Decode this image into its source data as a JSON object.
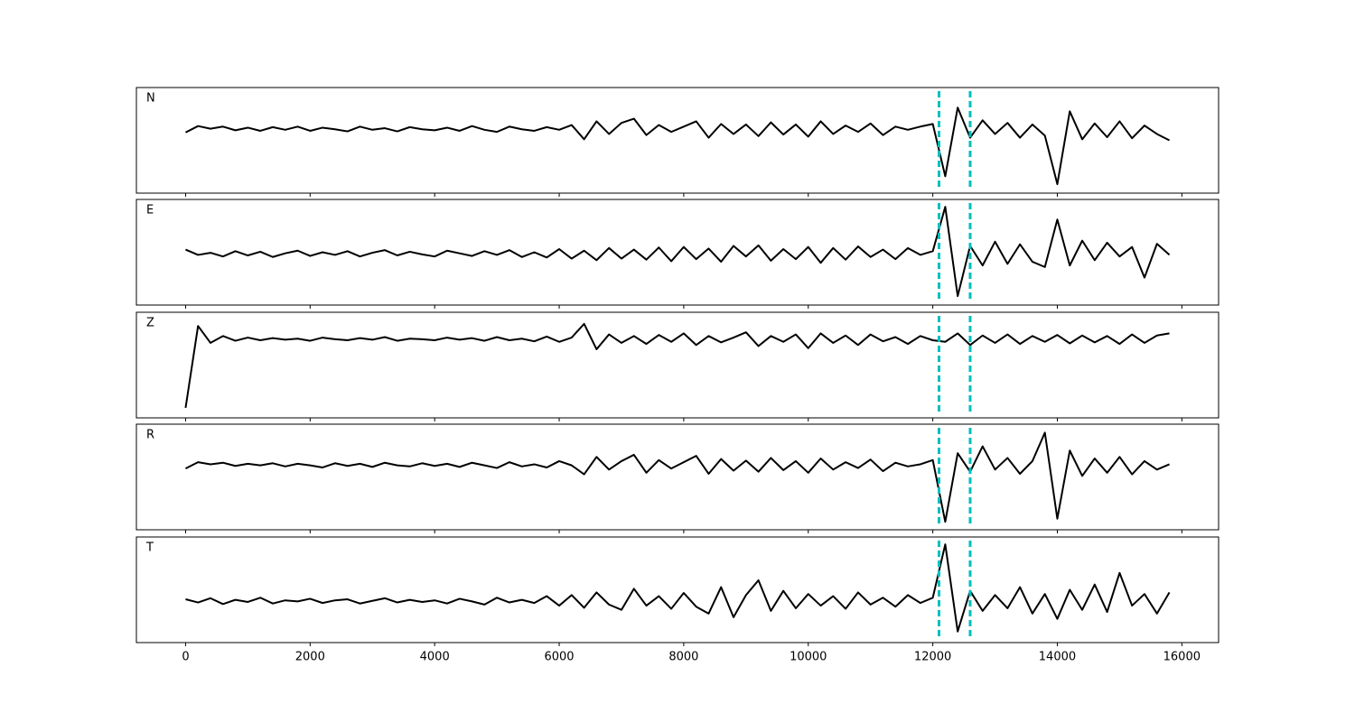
{
  "chart_data": {
    "type": "line",
    "x": [
      0,
      200,
      400,
      600,
      800,
      1000,
      1200,
      1400,
      1600,
      1800,
      2000,
      2200,
      2400,
      2600,
      2800,
      3000,
      3200,
      3400,
      3600,
      3800,
      4000,
      4200,
      4400,
      4600,
      4800,
      5000,
      5200,
      5400,
      5600,
      5800,
      6000,
      6200,
      6400,
      6600,
      6800,
      7000,
      7200,
      7400,
      7600,
      7800,
      8000,
      8200,
      8400,
      8600,
      8800,
      9000,
      9200,
      9400,
      9600,
      9800,
      10000,
      10200,
      10400,
      10600,
      10800,
      11000,
      11200,
      11400,
      11600,
      11800,
      12000,
      12200,
      12400,
      12600,
      12800,
      13000,
      13200,
      13400,
      13600,
      13800,
      14000,
      14200,
      14400,
      14600,
      14800,
      15000,
      15200,
      15400,
      15600,
      15800
    ],
    "xlim": [
      -790,
      16590
    ],
    "xticks": [
      0,
      2000,
      4000,
      6000,
      8000,
      10000,
      12000,
      14000,
      16000
    ],
    "ylim": [
      -1,
      1
    ],
    "line_color": "#000000",
    "vlines": [
      12100,
      12600
    ],
    "vline_color": "#00bfbf",
    "series": [
      {
        "name": "N",
        "values": [
          0.15,
          0.27,
          0.22,
          0.26,
          0.19,
          0.24,
          0.18,
          0.25,
          0.2,
          0.26,
          0.18,
          0.24,
          0.21,
          0.17,
          0.26,
          0.2,
          0.23,
          0.17,
          0.25,
          0.21,
          0.19,
          0.24,
          0.18,
          0.27,
          0.2,
          0.16,
          0.26,
          0.21,
          0.18,
          0.25,
          0.2,
          0.29,
          0.02,
          0.36,
          0.12,
          0.33,
          0.41,
          0.1,
          0.29,
          0.16,
          0.26,
          0.36,
          0.05,
          0.31,
          0.12,
          0.3,
          0.08,
          0.34,
          0.11,
          0.3,
          0.07,
          0.36,
          0.12,
          0.28,
          0.16,
          0.32,
          0.1,
          0.26,
          0.2,
          0.26,
          0.31,
          -0.68,
          0.62,
          0.05,
          0.38,
          0.12,
          0.33,
          0.05,
          0.3,
          0.09,
          -0.83,
          0.55,
          0.02,
          0.32,
          0.06,
          0.36,
          0.04,
          0.28,
          0.12,
          0.0
        ]
      },
      {
        "name": "E",
        "values": [
          0.05,
          -0.05,
          -0.01,
          -0.08,
          0.02,
          -0.06,
          0.01,
          -0.09,
          -0.02,
          0.03,
          -0.07,
          0.0,
          -0.05,
          0.02,
          -0.08,
          -0.01,
          0.04,
          -0.06,
          0.01,
          -0.04,
          -0.08,
          0.03,
          -0.02,
          -0.07,
          0.02,
          -0.05,
          0.04,
          -0.09,
          0.0,
          -0.1,
          0.06,
          -0.12,
          0.03,
          -0.15,
          0.08,
          -0.12,
          0.05,
          -0.14,
          0.09,
          -0.17,
          0.1,
          -0.13,
          0.07,
          -0.18,
          0.12,
          -0.08,
          0.13,
          -0.16,
          0.06,
          -0.13,
          0.1,
          -0.2,
          0.08,
          -0.14,
          0.11,
          -0.09,
          0.05,
          -0.13,
          0.08,
          -0.05,
          0.02,
          0.86,
          -0.83,
          0.12,
          -0.25,
          0.2,
          -0.22,
          0.15,
          -0.18,
          -0.28,
          0.62,
          -0.25,
          0.22,
          -0.15,
          0.18,
          -0.08,
          0.1,
          -0.48,
          0.16,
          -0.05
        ]
      },
      {
        "name": "Z",
        "values": [
          -0.81,
          0.74,
          0.42,
          0.55,
          0.46,
          0.52,
          0.47,
          0.51,
          0.48,
          0.5,
          0.46,
          0.52,
          0.49,
          0.47,
          0.51,
          0.48,
          0.53,
          0.46,
          0.5,
          0.49,
          0.47,
          0.52,
          0.48,
          0.51,
          0.46,
          0.53,
          0.47,
          0.5,
          0.45,
          0.54,
          0.44,
          0.52,
          0.78,
          0.3,
          0.58,
          0.42,
          0.55,
          0.4,
          0.57,
          0.44,
          0.6,
          0.38,
          0.55,
          0.43,
          0.52,
          0.62,
          0.36,
          0.55,
          0.44,
          0.58,
          0.32,
          0.6,
          0.42,
          0.56,
          0.38,
          0.58,
          0.45,
          0.53,
          0.4,
          0.55,
          0.47,
          0.44,
          0.6,
          0.38,
          0.56,
          0.42,
          0.58,
          0.4,
          0.55,
          0.44,
          0.57,
          0.41,
          0.56,
          0.43,
          0.55,
          0.4,
          0.58,
          0.42,
          0.56,
          0.6
        ]
      },
      {
        "name": "R",
        "values": [
          0.16,
          0.28,
          0.24,
          0.27,
          0.21,
          0.25,
          0.22,
          0.26,
          0.2,
          0.25,
          0.22,
          0.18,
          0.26,
          0.21,
          0.25,
          0.19,
          0.27,
          0.22,
          0.2,
          0.26,
          0.21,
          0.25,
          0.19,
          0.27,
          0.22,
          0.17,
          0.28,
          0.2,
          0.24,
          0.18,
          0.3,
          0.22,
          0.05,
          0.38,
          0.14,
          0.3,
          0.42,
          0.08,
          0.32,
          0.16,
          0.28,
          0.4,
          0.06,
          0.34,
          0.12,
          0.31,
          0.1,
          0.36,
          0.13,
          0.3,
          0.08,
          0.35,
          0.14,
          0.28,
          0.17,
          0.33,
          0.11,
          0.27,
          0.2,
          0.24,
          0.32,
          -0.85,
          0.45,
          0.1,
          0.58,
          0.14,
          0.36,
          0.06,
          0.3,
          0.84,
          -0.79,
          0.5,
          0.02,
          0.35,
          0.08,
          0.38,
          0.05,
          0.3,
          0.14,
          0.24
        ]
      },
      {
        "name": "T",
        "values": [
          -0.18,
          -0.24,
          -0.16,
          -0.27,
          -0.19,
          -0.23,
          -0.15,
          -0.26,
          -0.2,
          -0.22,
          -0.17,
          -0.25,
          -0.2,
          -0.18,
          -0.26,
          -0.21,
          -0.16,
          -0.24,
          -0.19,
          -0.23,
          -0.2,
          -0.26,
          -0.17,
          -0.22,
          -0.28,
          -0.15,
          -0.24,
          -0.19,
          -0.25,
          -0.12,
          -0.3,
          -0.1,
          -0.34,
          -0.05,
          -0.28,
          -0.38,
          0.02,
          -0.3,
          -0.12,
          -0.36,
          -0.06,
          -0.32,
          -0.45,
          0.05,
          -0.52,
          -0.1,
          0.18,
          -0.4,
          -0.02,
          -0.35,
          -0.08,
          -0.3,
          -0.12,
          -0.36,
          -0.05,
          -0.28,
          -0.15,
          -0.32,
          -0.1,
          -0.25,
          -0.15,
          0.86,
          -0.79,
          -0.02,
          -0.4,
          -0.1,
          -0.35,
          0.05,
          -0.45,
          -0.08,
          -0.55,
          0.0,
          -0.38,
          0.1,
          -0.42,
          0.32,
          -0.3,
          -0.08,
          -0.45,
          -0.05
        ]
      }
    ]
  }
}
